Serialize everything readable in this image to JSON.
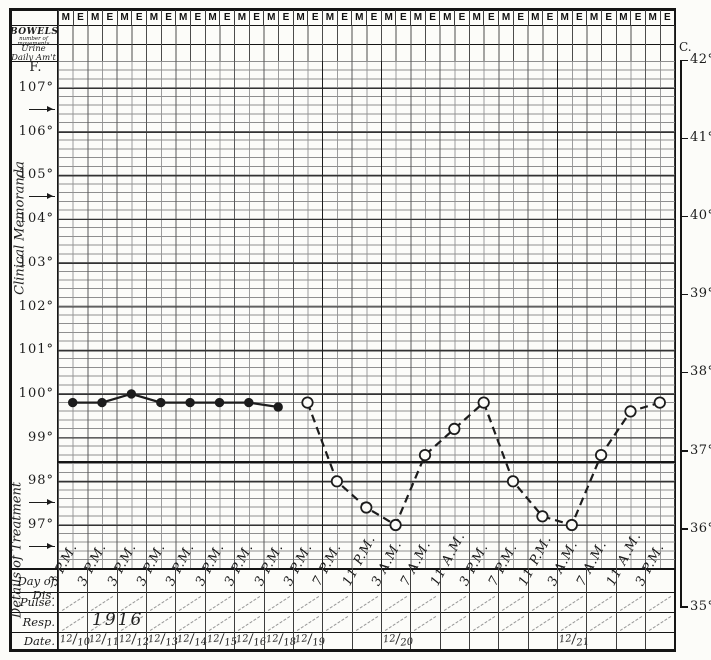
{
  "colors": {
    "ink": "#1c1c1c",
    "paper": "#fcfcf9",
    "grid_minor": "#8f8f8f",
    "grid_major": "#333333"
  },
  "header": {
    "me_cells": [
      "M",
      "E",
      "M",
      "E",
      "M",
      "E",
      "M",
      "E",
      "M",
      "E",
      "M",
      "E",
      "M",
      "E",
      "M",
      "E",
      "M",
      "E",
      "M",
      "E",
      "M",
      "E",
      "M",
      "E",
      "M",
      "E",
      "M",
      "E",
      "M",
      "E",
      "M",
      "E",
      "M",
      "E",
      "M",
      "E",
      "M",
      "E",
      "M",
      "E",
      "M",
      "E"
    ]
  },
  "left_panel": {
    "bowels": {
      "label": "BOWELS",
      "sub1": "number of",
      "sub2": "movements"
    },
    "urine": {
      "line1": "Urine",
      "line2": "Daily Am't"
    },
    "f_heading": "F.",
    "clinical_memoranda": "Clinical Memoranda",
    "details_of_treatment": "Details of Treatment",
    "f_scale_labels": [
      "107°",
      "106°",
      "105°",
      "104°",
      "103°",
      "102°",
      "101°",
      "100°",
      "99°",
      "98°",
      "97°"
    ],
    "arrow_marks_f": [
      106.5,
      104.5,
      97.5,
      96.5
    ]
  },
  "right_panel": {
    "c_heading": "C.",
    "c_scale_labels": [
      "42°",
      "41°",
      "40°",
      "39°",
      "38°",
      "37°",
      "36°",
      "35°"
    ]
  },
  "bottom_panel": {
    "row_labels": [
      "Day of Dis.",
      "Pulse.",
      "Resp.",
      "Date."
    ],
    "year_note": "1916"
  },
  "chart_data": {
    "type": "line",
    "y_axis_f_ticks": [
      107,
      106,
      105,
      104,
      103,
      102,
      101,
      100,
      99,
      98,
      97
    ],
    "y_axis_c_ticks": [
      42,
      41,
      40,
      39,
      38,
      37,
      36,
      35
    ],
    "normal_line_f": 98.5,
    "grid": true,
    "columns": [
      {
        "time": "3 P.M.",
        "date": "12/10",
        "temp": 99.8,
        "marker": "filled"
      },
      {
        "time": "3 P.M.",
        "date": "12/11",
        "temp": 99.8,
        "marker": "filled"
      },
      {
        "time": "3 P.M.",
        "date": "12/12",
        "temp": 100.0,
        "marker": "filled"
      },
      {
        "time": "3 P.M.",
        "date": "12/13",
        "temp": 99.8,
        "marker": "filled"
      },
      {
        "time": "3 P.M.",
        "date": "12/14",
        "temp": 99.8,
        "marker": "filled"
      },
      {
        "time": "3 P.M.",
        "date": "12/15",
        "temp": 99.8,
        "marker": "filled"
      },
      {
        "time": "3 P.M.",
        "date": "12/16",
        "temp": 99.8,
        "marker": "filled"
      },
      {
        "time": "3 P.M.",
        "date": "12/18",
        "temp": 99.7,
        "marker": "filled"
      },
      {
        "time": "3 P.M.",
        "date": "12/19",
        "temp": 99.8,
        "marker": "open"
      },
      {
        "time": "7 P.M.",
        "date": "",
        "temp": 98.0,
        "marker": "open"
      },
      {
        "time": "11 P.M.",
        "date": "",
        "temp": 97.4,
        "marker": "open"
      },
      {
        "time": "3 A.M.",
        "date": "12/20",
        "temp": 97.0,
        "marker": "open"
      },
      {
        "time": "7 A.M.",
        "date": "",
        "temp": 98.6,
        "marker": "open"
      },
      {
        "time": "11 A.M.",
        "date": "",
        "temp": 99.2,
        "marker": "open"
      },
      {
        "time": "3 P.M.",
        "date": "",
        "temp": 99.8,
        "marker": "open"
      },
      {
        "time": "7 P.M.",
        "date": "",
        "temp": 98.0,
        "marker": "open"
      },
      {
        "time": "11 P.M.",
        "date": "",
        "temp": 97.2,
        "marker": "open"
      },
      {
        "time": "3 A.M.",
        "date": "12/21",
        "temp": 97.0,
        "marker": "open"
      },
      {
        "time": "7 A.M.",
        "date": "",
        "temp": 98.6,
        "marker": "open"
      },
      {
        "time": "11 A.M.",
        "date": "",
        "temp": 99.6,
        "marker": "open"
      },
      {
        "time": "3 P.M.",
        "date": "",
        "temp": 99.8,
        "marker": "open"
      }
    ]
  }
}
